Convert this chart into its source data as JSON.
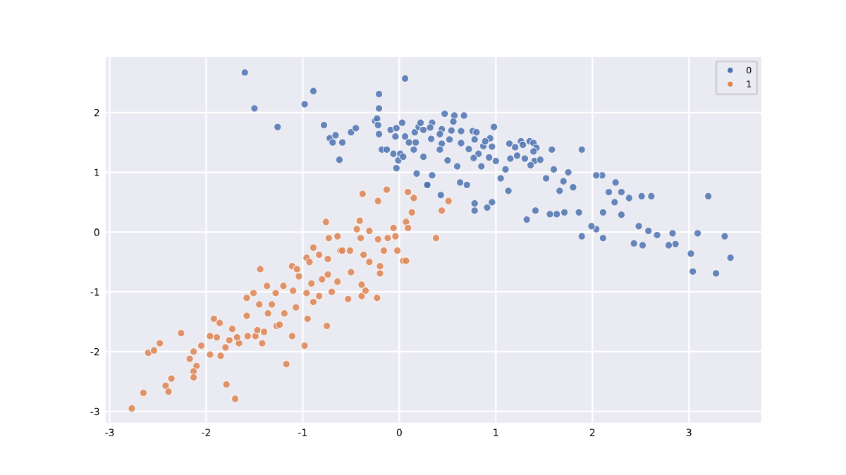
{
  "chart_data": {
    "type": "scatter",
    "xlim": [
      -3.04,
      3.75
    ],
    "ylim": [
      -3.19,
      2.93
    ],
    "xticks": [
      -3,
      -2,
      -1,
      0,
      1,
      2,
      3
    ],
    "yticks": [
      -3,
      -2,
      -1,
      0,
      1,
      2
    ],
    "grid": true,
    "legend": "top right",
    "marker": "circle",
    "series": [
      {
        "name": "0",
        "color": "#4c72b0",
        "x": [
          -1.6,
          -1.5,
          -1.26,
          -0.98,
          -0.89,
          -0.78,
          -0.72,
          -0.66,
          -0.69,
          -0.59,
          -0.62,
          -0.5,
          -0.45,
          -0.25,
          -0.23,
          -0.21,
          -0.21,
          -0.22,
          -0.21,
          -0.18,
          -0.13,
          0.06,
          -0.09,
          -0.03,
          0.03,
          -0.04,
          -0.06,
          -0.03,
          -0.01,
          0.01,
          0.04,
          0.06,
          0.1,
          0.18,
          0.29,
          0.16,
          0.2,
          0.25,
          0.25,
          0.15,
          0.17,
          3.2,
          3.28,
          3.04,
          3.43,
          3.37,
          3.09,
          3.02,
          2.83,
          2.86,
          2.79,
          2.67,
          2.58,
          2.52,
          2.48,
          2.43,
          2.61,
          2.51,
          2.38,
          2.3,
          2.3,
          2.24,
          2.17,
          2.23,
          2.1,
          2.04,
          2.11,
          2.11,
          2.04,
          1.99,
          1.89,
          1.89,
          1.86,
          1.71,
          1.63,
          1.56,
          1.41,
          1.32,
          1.58,
          1.14,
          0.98,
          0.67,
          0.57,
          0.47,
          0.56,
          0.76,
          0.8,
          0.94,
          0.43,
          0.78,
          0.78,
          0.91,
          0.96,
          0.7,
          0.63,
          0.34,
          0.29,
          0.22,
          0.34,
          0.32,
          0.44,
          0.42,
          0.54,
          0.64,
          0.52,
          0.44,
          0.33,
          0.42,
          0.64,
          0.78,
          0.72,
          0.87,
          0.96,
          0.82,
          0.89,
          0.77,
          0.93,
          1.0,
          1.13,
          1.15,
          1.2,
          1.22,
          1.26,
          1.28,
          1.3,
          1.35,
          1.39,
          1.42,
          1.39,
          1.4,
          1.36,
          1.46,
          1.66,
          1.52,
          1.7,
          1.8,
          1.75,
          1.6,
          1.05,
          1.1,
          0.85,
          0.6,
          0.5
        ],
        "values": [
          2.67,
          2.07,
          1.76,
          2.14,
          2.36,
          1.79,
          1.57,
          1.62,
          1.5,
          1.5,
          1.21,
          1.67,
          1.74,
          1.86,
          1.9,
          2.31,
          2.07,
          1.79,
          1.64,
          1.38,
          1.38,
          2.57,
          1.71,
          1.74,
          1.83,
          1.6,
          1.31,
          1.07,
          1.2,
          1.31,
          1.26,
          1.6,
          1.5,
          0.98,
          0.79,
          1.67,
          1.76,
          1.71,
          1.26,
          1.38,
          1.5,
          0.6,
          -0.69,
          -0.66,
          -0.43,
          -0.07,
          -0.02,
          -0.36,
          -0.02,
          -0.2,
          -0.22,
          -0.05,
          0.02,
          -0.22,
          0.1,
          -0.19,
          0.6,
          0.6,
          0.57,
          0.67,
          0.29,
          0.83,
          0.67,
          0.5,
          0.95,
          0.95,
          0.33,
          -0.1,
          0.05,
          0.1,
          -0.07,
          1.38,
          0.33,
          0.33,
          0.3,
          0.3,
          0.36,
          0.21,
          1.38,
          1.48,
          1.76,
          1.95,
          1.95,
          1.98,
          1.85,
          1.69,
          1.67,
          1.57,
          0.62,
          0.48,
          0.36,
          0.41,
          0.5,
          0.79,
          0.83,
          0.95,
          0.79,
          1.83,
          1.83,
          1.75,
          1.72,
          1.64,
          1.7,
          1.69,
          1.55,
          1.48,
          1.56,
          1.38,
          1.49,
          1.55,
          1.39,
          1.44,
          1.43,
          1.31,
          1.52,
          1.24,
          1.25,
          1.19,
          0.69,
          1.23,
          1.42,
          1.28,
          1.52,
          1.46,
          1.23,
          1.52,
          1.49,
          1.41,
          1.35,
          1.19,
          1.12,
          1.21,
          0.69,
          0.9,
          0.85,
          0.75,
          1.0,
          1.05,
          0.9,
          1.05,
          1.1,
          1.1,
          1.2
        ]
      },
      {
        "name": "1",
        "color": "#dd8452",
        "x": [
          -2.77,
          -2.65,
          -2.6,
          -2.54,
          -2.48,
          -2.42,
          -2.39,
          -2.36,
          -2.26,
          -2.17,
          -2.13,
          -2.1,
          -2.13,
          -2.13,
          -2.05,
          -1.96,
          -1.96,
          -1.92,
          -1.89,
          -1.86,
          -1.85,
          -1.8,
          -1.79,
          -1.7,
          -1.73,
          -1.76,
          -1.66,
          -1.68,
          -1.58,
          -1.57,
          -1.58,
          -1.51,
          -1.49,
          -1.47,
          -1.44,
          -1.45,
          -1.42,
          -1.4,
          -1.37,
          -1.36,
          -1.32,
          -1.28,
          -1.27,
          -1.24,
          -1.2,
          -1.17,
          -1.19,
          -1.11,
          -1.1,
          -1.11,
          -1.07,
          -1.06,
          -1.04,
          -0.98,
          -0.96,
          -0.96,
          -0.95,
          -0.93,
          -0.91,
          -0.89,
          -0.89,
          -0.83,
          -0.83,
          -0.8,
          -0.76,
          -0.75,
          -0.74,
          -0.74,
          -0.73,
          -0.7,
          -0.64,
          -0.64,
          -0.61,
          -0.59,
          -0.53,
          -0.51,
          -0.5,
          -0.44,
          -0.41,
          -0.4,
          -0.39,
          -0.39,
          -0.37,
          -0.35,
          -0.31,
          -0.31,
          -0.23,
          -0.2,
          -0.2,
          -0.22,
          -0.22,
          -0.38,
          -0.13,
          -0.16,
          -0.12,
          -0.06,
          -0.04,
          -0.02,
          0.04,
          0.07,
          0.07,
          0.09,
          0.09,
          0.13,
          0.15,
          0.38,
          0.44,
          0.51
        ],
        "values": [
          -2.95,
          -2.69,
          -2.02,
          -1.98,
          -1.86,
          -2.57,
          -2.67,
          -2.45,
          -1.69,
          -2.12,
          -2.0,
          -2.24,
          -2.33,
          -2.43,
          -1.9,
          -2.05,
          -1.74,
          -1.45,
          -1.76,
          -1.52,
          -2.07,
          -1.93,
          -2.55,
          -2.79,
          -1.62,
          -1.81,
          -1.86,
          -1.76,
          -1.4,
          -1.74,
          -1.1,
          -1.02,
          -1.74,
          -1.64,
          -0.62,
          -1.21,
          -1.86,
          -1.67,
          -0.9,
          -1.36,
          -1.21,
          -1.02,
          -1.57,
          -1.55,
          -0.9,
          -2.21,
          -1.36,
          -1.74,
          -0.98,
          -0.57,
          -1.26,
          -0.62,
          -0.74,
          -1.9,
          -0.43,
          -1.02,
          -1.45,
          -0.5,
          -0.86,
          -0.26,
          -1.17,
          -0.38,
          -1.07,
          -0.79,
          0.17,
          -1.57,
          -0.71,
          -0.45,
          -0.1,
          -1.0,
          -0.07,
          -0.83,
          -0.31,
          -0.31,
          -1.12,
          -0.31,
          -0.67,
          0.05,
          0.19,
          -0.1,
          -1.07,
          -0.88,
          -0.38,
          -0.98,
          0.02,
          -0.5,
          -1.1,
          -0.69,
          -0.57,
          -0.12,
          0.52,
          0.64,
          0.71,
          -0.31,
          -0.1,
          0.07,
          -0.07,
          -0.31,
          -0.48,
          -0.48,
          0.17,
          0.07,
          0.67,
          0.33,
          0.57,
          -0.1,
          0.36,
          0.52
        ]
      }
    ]
  }
}
